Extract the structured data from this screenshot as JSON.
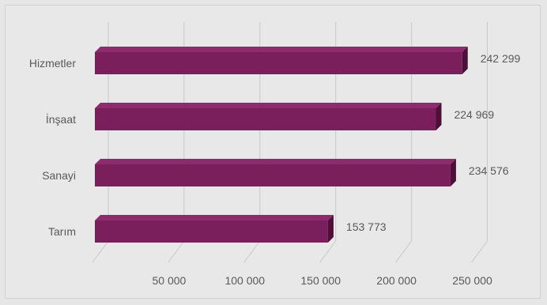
{
  "chart_data": {
    "type": "bar",
    "orientation": "horizontal",
    "style": "3d",
    "categories": [
      "Hizmetler",
      "İnşaat",
      "Sanayi",
      "Tarım"
    ],
    "values": [
      242299,
      224969,
      234576,
      153773
    ],
    "value_labels": [
      "242 299",
      "224 969",
      "234 576",
      "153 773"
    ],
    "x_ticks": [
      50000,
      100000,
      150000,
      200000,
      250000
    ],
    "x_tick_labels": [
      "50 000",
      "100 000",
      "150 000",
      "200 000",
      "250 000"
    ],
    "xlim": [
      0,
      250000
    ],
    "grid": true,
    "legend": "none",
    "colors": {
      "bar_front": "#7b1f5c",
      "bar_top": "#8e2b6d",
      "bar_side": "#4d1038",
      "gridline": "#c8c8c8",
      "text": "#595959"
    }
  }
}
